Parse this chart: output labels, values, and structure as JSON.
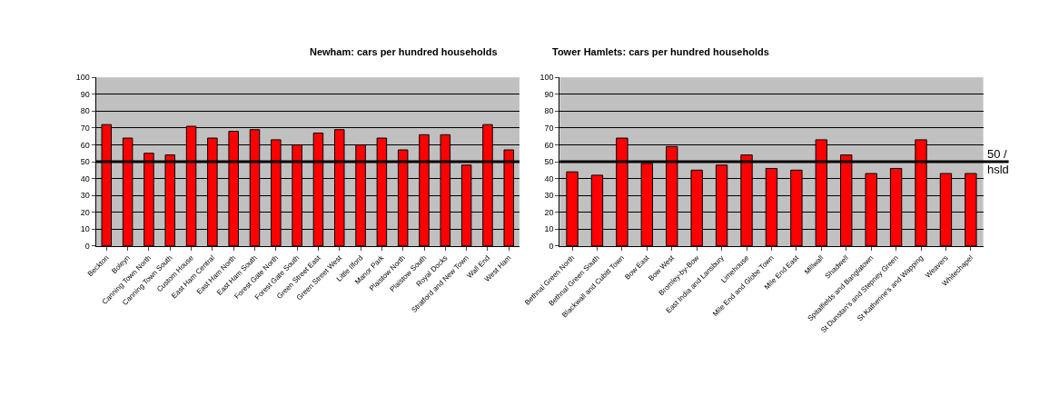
{
  "chart_data": [
    {
      "type": "bar",
      "title": "Newham: cars per hundred households",
      "categories": [
        "Beckton",
        "Boleyn",
        "Canning Town North",
        "Canning Town South",
        "Custom House",
        "East Ham Central",
        "East Ham North",
        "East Ham South",
        "Forest Gate North",
        "Forest Gate South",
        "Green Street East",
        "Green Street West",
        "Little Ilford",
        "Manor Park",
        "Plaistow North",
        "Plaistow South",
        "Royal Docks",
        "Stratford and New Town",
        "Wall End",
        "West Ham"
      ],
      "series": [
        {
          "color": "#ff0000",
          "values": [
            72,
            64,
            55,
            54,
            71,
            64,
            68,
            69,
            63,
            60,
            67,
            69,
            60,
            64,
            57,
            66,
            66,
            48,
            72,
            57
          ]
        }
      ],
      "ylim": [
        0,
        100
      ],
      "yticks": [
        0,
        10,
        20,
        30,
        40,
        50,
        60,
        70,
        80,
        90,
        100
      ],
      "grid": "y",
      "ref_lines": [
        {
          "axis": "y",
          "value": 50,
          "color": "#000000"
        }
      ]
    },
    {
      "type": "bar",
      "title": "Tower Hamlets: cars per hundred households",
      "categories": [
        "Bethnal Green North",
        "Bethnal Green South",
        "Blackwall and Cubitt Town",
        "Bow East",
        "Bow West",
        "Bromley-by-Bow",
        "East India and Lansbury",
        "Limehouse",
        "Mile End and Globe Town",
        "Mile End East",
        "Millwall",
        "Shadwell",
        "Spitalfields and Banglatown",
        "St Dunstan's and Stepney Green",
        "St Katherine's and Wapping",
        "Weavers",
        "Whitechapel"
      ],
      "series": [
        {
          "color": "#ff0000",
          "values": [
            44,
            42,
            64,
            49,
            59,
            45,
            48,
            54,
            46,
            45,
            63,
            54,
            43,
            46,
            63,
            43,
            43
          ]
        }
      ],
      "ylim": [
        0,
        100
      ],
      "yticks": [
        0,
        10,
        20,
        30,
        40,
        50,
        60,
        70,
        80,
        90,
        100
      ],
      "grid": "y",
      "ref_lines": [
        {
          "axis": "y",
          "value": 50,
          "label": "50 / hsld",
          "color": "#000000"
        }
      ]
    }
  ]
}
